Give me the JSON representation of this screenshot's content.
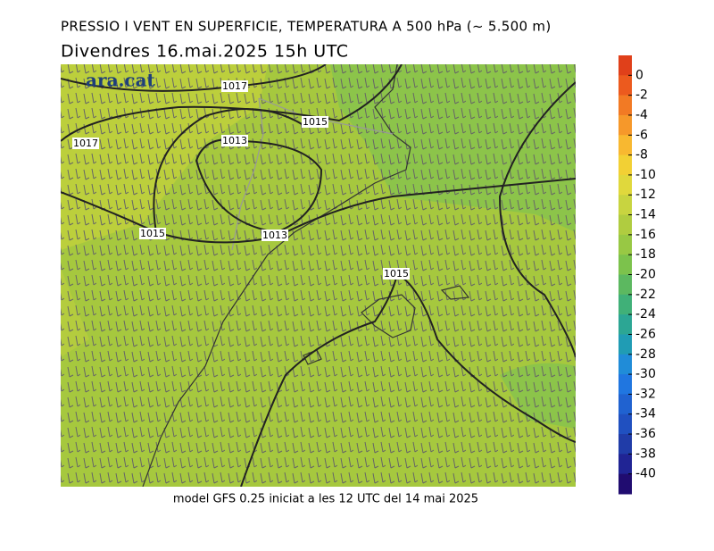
{
  "header": {
    "title": "PRESSIO I VENT EN SUPERFICIE, TEMPERATURA A 500 hPa (~ 5.500 m)",
    "subtitle": "Divendres  16.mai.2025  15h  UTC"
  },
  "logo": "ara.cat",
  "footer": "model GFS 0.25 iniciat a les 12 UTC del 14 mai 2025",
  "contour_labels": [
    1017,
    1015,
    1017,
    1013,
    1015,
    1013,
    1015
  ],
  "colorbar": {
    "lim": [
      -42,
      2
    ],
    "ticks": [
      0,
      -2,
      -4,
      -6,
      -8,
      -10,
      -12,
      -14,
      -16,
      -18,
      -20,
      -22,
      -24,
      -26,
      -28,
      -30,
      -32,
      -34,
      -36,
      -38,
      -40
    ],
    "colors": [
      "#e0401a",
      "#ec5a1e",
      "#f27a24",
      "#f6982a",
      "#f8b830",
      "#f2d034",
      "#e0d83c",
      "#c8d440",
      "#b0cc40",
      "#98c844",
      "#7cc24c",
      "#5cb860",
      "#40b078",
      "#2ca694",
      "#209cb4",
      "#208cd8",
      "#2076e0",
      "#2062d0",
      "#2050c0",
      "#203ca8",
      "#202494",
      "#200c70"
    ]
  }
}
